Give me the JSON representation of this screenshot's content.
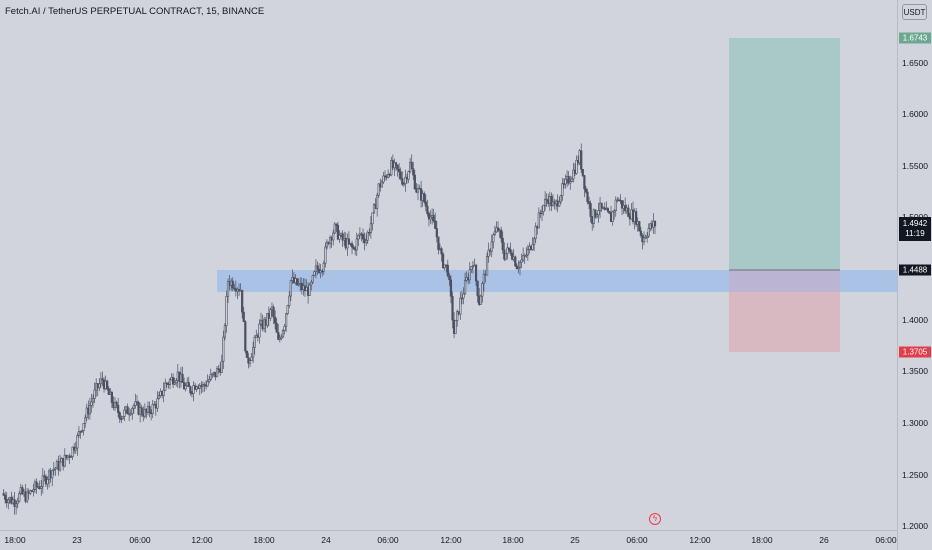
{
  "header": {
    "title": "Fetch.AI / TetherUS PERPETUAL CONTRACT, 15, BINANCE",
    "currency": "USDT"
  },
  "colors": {
    "background": "#d1d4dc",
    "candle": "#4a5060",
    "profit_zone": "#a8c9c7",
    "loss_zone": "#d8b9c2",
    "support_zone": "#a7c1e6",
    "take_profit_badge": "#6ca891",
    "stop_loss_badge": "#e23d4a",
    "entry_badge": "#131722",
    "current_badge": "#131722"
  },
  "price_axis": {
    "ticks": [
      "1.6500",
      "1.6000",
      "1.5500",
      "1.5000",
      "1.4000",
      "1.3500",
      "1.3000",
      "1.2500",
      "1.2000"
    ],
    "take_profit": "1.6743",
    "current_price": "1.4942",
    "countdown": "11:19",
    "entry": "1.4488",
    "stop_loss": "1.3705"
  },
  "time_axis": {
    "ticks": [
      "18:00",
      "23",
      "06:00",
      "12:00",
      "18:00",
      "24",
      "06:00",
      "12:00",
      "18:00",
      "25",
      "06:00",
      "12:00",
      "18:00",
      "26",
      "06:00"
    ]
  },
  "icons": {
    "event_marker": "lightning-icon"
  },
  "chart_data": {
    "type": "candlestick",
    "symbol": "Fetch.AI / TetherUS PERPETUAL CONTRACT",
    "interval": "15",
    "exchange": "BINANCE",
    "ylim": [
      1.2,
      1.71
    ],
    "position": {
      "entry": 1.4488,
      "take_profit": 1.6743,
      "stop_loss": 1.3705
    },
    "support_zone": [
      1.428,
      1.449
    ],
    "close_path": [
      [
        0,
        1.235
      ],
      [
        4,
        1.23
      ],
      [
        8,
        1.228
      ],
      [
        12,
        1.235
      ],
      [
        16,
        1.232
      ],
      [
        20,
        1.24
      ],
      [
        24,
        1.243
      ],
      [
        28,
        1.25
      ],
      [
        32,
        1.258
      ],
      [
        36,
        1.262
      ],
      [
        40,
        1.268
      ],
      [
        44,
        1.275
      ],
      [
        48,
        1.288
      ],
      [
        52,
        1.305
      ],
      [
        56,
        1.32
      ],
      [
        60,
        1.335
      ],
      [
        64,
        1.345
      ],
      [
        68,
        1.33
      ],
      [
        72,
        1.318
      ],
      [
        76,
        1.31
      ],
      [
        80,
        1.315
      ],
      [
        84,
        1.32
      ],
      [
        88,
        1.315
      ],
      [
        92,
        1.312
      ],
      [
        96,
        1.318
      ],
      [
        100,
        1.325
      ],
      [
        104,
        1.34
      ],
      [
        108,
        1.345
      ],
      [
        112,
        1.35
      ],
      [
        116,
        1.338
      ],
      [
        120,
        1.335
      ],
      [
        124,
        1.342
      ],
      [
        128,
        1.338
      ],
      [
        132,
        1.345
      ],
      [
        136,
        1.35
      ],
      [
        140,
        1.36
      ],
      [
        144,
        1.44
      ],
      [
        148,
        1.437
      ],
      [
        152,
        1.432
      ],
      [
        156,
        1.36
      ],
      [
        160,
        1.375
      ],
      [
        164,
        1.395
      ],
      [
        168,
        1.4
      ],
      [
        172,
        1.412
      ],
      [
        176,
        1.38
      ],
      [
        180,
        1.4
      ],
      [
        184,
        1.44
      ],
      [
        188,
        1.436
      ],
      [
        192,
        1.432
      ],
      [
        196,
        1.43
      ],
      [
        200,
        1.45
      ],
      [
        204,
        1.455
      ],
      [
        208,
        1.48
      ],
      [
        212,
        1.49
      ],
      [
        216,
        1.48
      ],
      [
        220,
        1.475
      ],
      [
        224,
        1.47
      ],
      [
        228,
        1.485
      ],
      [
        232,
        1.48
      ],
      [
        236,
        1.5
      ],
      [
        240,
        1.53
      ],
      [
        244,
        1.54
      ],
      [
        248,
        1.55
      ],
      [
        252,
        1.545
      ],
      [
        256,
        1.535
      ],
      [
        260,
        1.552
      ],
      [
        264,
        1.528
      ],
      [
        268,
        1.52
      ],
      [
        272,
        1.505
      ],
      [
        276,
        1.49
      ],
      [
        280,
        1.46
      ],
      [
        284,
        1.45
      ],
      [
        288,
        1.39
      ],
      [
        292,
        1.42
      ],
      [
        296,
        1.44
      ],
      [
        300,
        1.46
      ],
      [
        304,
        1.42
      ],
      [
        308,
        1.45
      ],
      [
        312,
        1.48
      ],
      [
        316,
        1.49
      ],
      [
        320,
        1.465
      ],
      [
        324,
        1.47
      ],
      [
        328,
        1.455
      ],
      [
        332,
        1.46
      ],
      [
        336,
        1.47
      ],
      [
        340,
        1.49
      ],
      [
        344,
        1.51
      ],
      [
        348,
        1.52
      ],
      [
        352,
        1.51
      ],
      [
        356,
        1.525
      ],
      [
        360,
        1.535
      ],
      [
        364,
        1.545
      ],
      [
        368,
        1.56
      ],
      [
        372,
        1.525
      ],
      [
        376,
        1.5
      ],
      [
        380,
        1.51
      ],
      [
        384,
        1.505
      ],
      [
        388,
        1.5
      ],
      [
        392,
        1.52
      ],
      [
        396,
        1.51
      ],
      [
        400,
        1.505
      ],
      [
        404,
        1.5
      ],
      [
        408,
        1.48
      ],
      [
        412,
        1.49
      ],
      [
        416,
        1.4942
      ]
    ]
  }
}
